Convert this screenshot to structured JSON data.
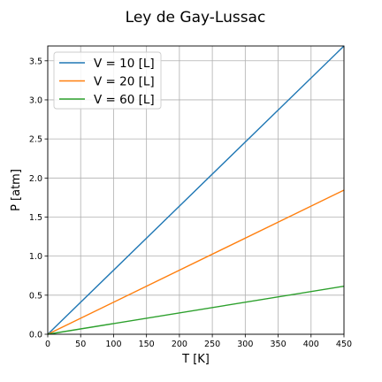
{
  "chart_data": {
    "type": "line",
    "title": "Ley de Gay-Lussac",
    "xlabel": "T [K]",
    "ylabel": "P [atm]",
    "xlim": [
      0,
      450
    ],
    "ylim": [
      0,
      3.69
    ],
    "xticks": [
      0,
      50,
      100,
      150,
      200,
      250,
      300,
      350,
      400,
      450
    ],
    "xtick_labels": [
      "0",
      "50",
      "100",
      "150",
      "200",
      "250",
      "300",
      "350",
      "400",
      "450"
    ],
    "yticks": [
      0.0,
      0.5,
      1.0,
      1.5,
      2.0,
      2.5,
      3.0,
      3.5
    ],
    "ytick_labels": [
      "0.0",
      "0.5",
      "1.0",
      "1.5",
      "2.0",
      "2.5",
      "3.0",
      "3.5"
    ],
    "grid": true,
    "legend_position": "top-left",
    "series": [
      {
        "name": "V = 10 [L]",
        "color": "#1f77b4",
        "x": [
          0,
          450
        ],
        "y": [
          0,
          3.69
        ]
      },
      {
        "name": "V = 20 [L]",
        "color": "#ff7f0e",
        "x": [
          0,
          450
        ],
        "y": [
          0,
          1.845
        ]
      },
      {
        "name": "V = 60 [L]",
        "color": "#2ca02c",
        "x": [
          0,
          450
        ],
        "y": [
          0,
          0.615
        ]
      }
    ]
  }
}
